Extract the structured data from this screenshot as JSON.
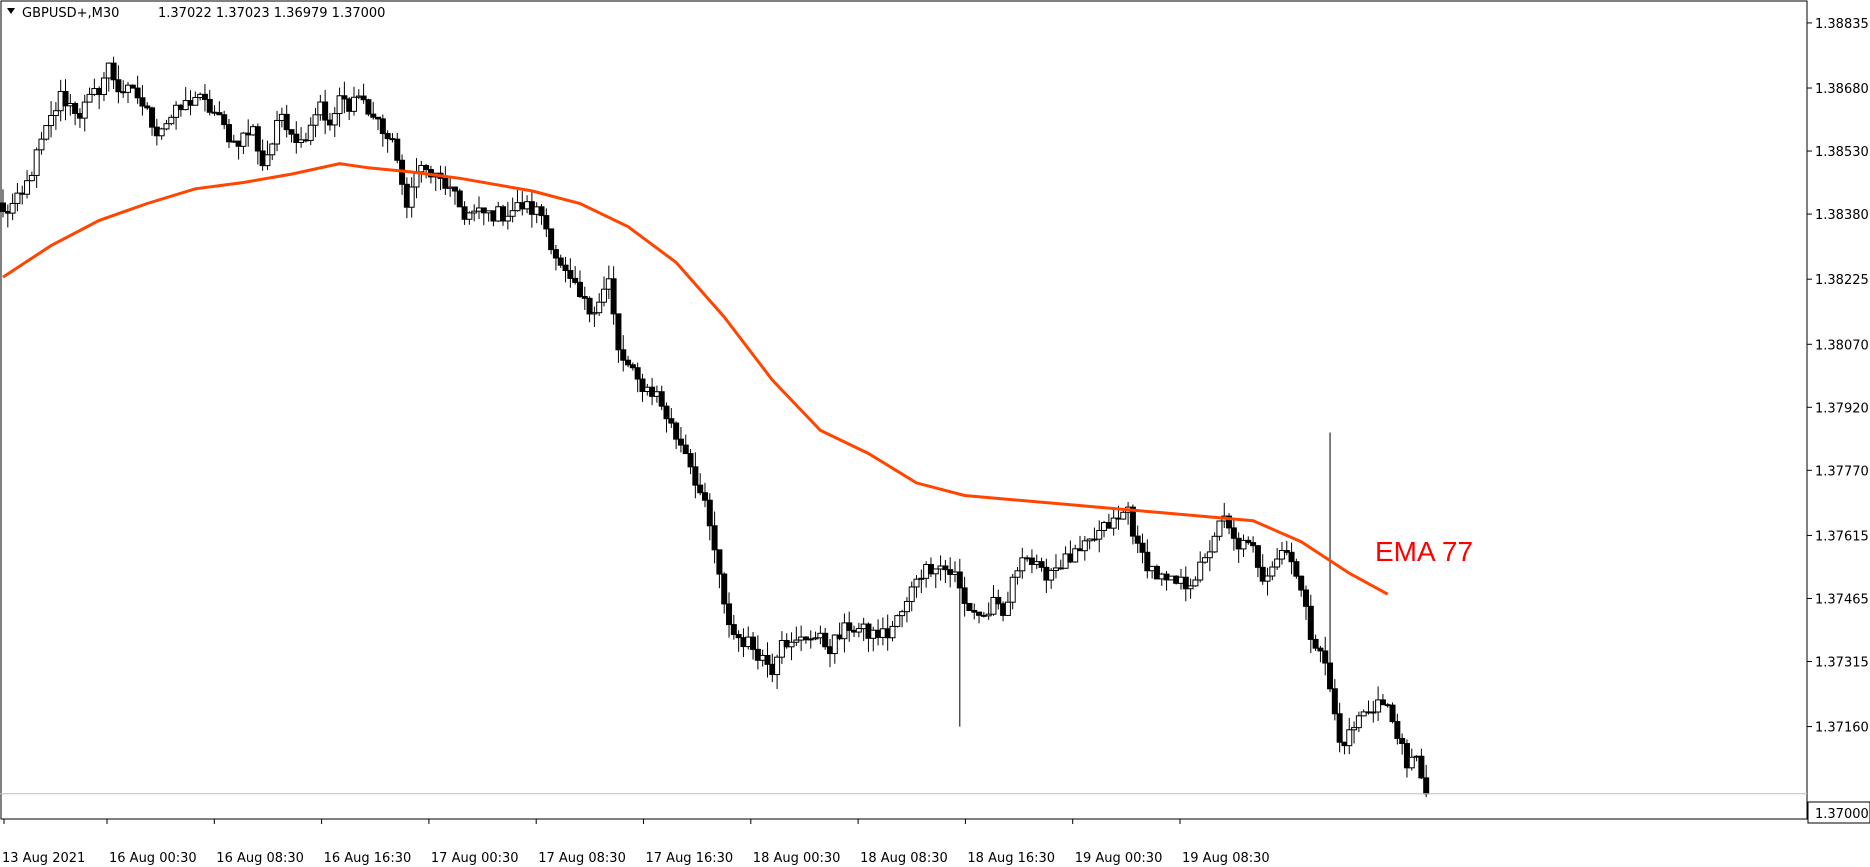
{
  "header": {
    "symbol": "GBPUSD+,M30",
    "ohlc": "1.37022 1.37023 1.36979 1.37000"
  },
  "colors": {
    "background": "#ffffff",
    "frame": "#000000",
    "candle": "#000000",
    "ema": "#ff4500",
    "ema_label": "#ff0000",
    "price_line": "#c0c0c0"
  },
  "chart_data": {
    "type": "candlestick",
    "ylim": [
      1.3694,
      1.3888
    ],
    "y_ticks": [
      "1.38835",
      "1.38680",
      "1.38530",
      "1.38380",
      "1.38225",
      "1.38070",
      "1.37920",
      "1.37770",
      "1.37615",
      "1.37465",
      "1.37315",
      "1.37160"
    ],
    "x_ticks": [
      "13 Aug 2021",
      "16 Aug 00:30",
      "16 Aug 08:30",
      "16 Aug 16:30",
      "17 Aug 00:30",
      "17 Aug 08:30",
      "17 Aug 16:30",
      "18 Aug 00:30",
      "18 Aug 08:30",
      "18 Aug 16:30",
      "19 Aug 00:30",
      "19 Aug 08:30"
    ],
    "last_price": "1.37000",
    "grid": false,
    "annotation": "EMA 77",
    "close_path": [
      [
        0,
        1.3838
      ],
      [
        4,
        1.3842
      ],
      [
        8,
        1.3855
      ],
      [
        12,
        1.3866
      ],
      [
        16,
        1.3862
      ],
      [
        20,
        1.3868
      ],
      [
        22,
        1.3873
      ],
      [
        24,
        1.3868
      ],
      [
        28,
        1.3866
      ],
      [
        30,
        1.3862
      ],
      [
        32,
        1.3858
      ],
      [
        36,
        1.3862
      ],
      [
        40,
        1.3866
      ],
      [
        44,
        1.3862
      ],
      [
        48,
        1.3855
      ],
      [
        52,
        1.3858
      ],
      [
        54,
        1.385
      ],
      [
        56,
        1.3855
      ],
      [
        58,
        1.3862
      ],
      [
        60,
        1.3858
      ],
      [
        62,
        1.3855
      ],
      [
        64,
        1.386
      ],
      [
        66,
        1.3865
      ],
      [
        68,
        1.3858
      ],
      [
        70,
        1.3866
      ],
      [
        72,
        1.3862
      ],
      [
        74,
        1.3868
      ],
      [
        76,
        1.3862
      ],
      [
        78,
        1.386
      ],
      [
        80,
        1.3856
      ],
      [
        82,
        1.3852
      ],
      [
        84,
        1.3838
      ],
      [
        86,
        1.385
      ],
      [
        88,
        1.3848
      ],
      [
        92,
        1.3845
      ],
      [
        96,
        1.3838
      ],
      [
        100,
        1.3838
      ],
      [
        104,
        1.3838
      ],
      [
        108,
        1.384
      ],
      [
        112,
        1.3838
      ],
      [
        116,
        1.3825
      ],
      [
        120,
        1.3818
      ],
      [
        122,
        1.3815
      ],
      [
        124,
        1.3818
      ],
      [
        126,
        1.3822
      ],
      [
        128,
        1.3805
      ],
      [
        132,
        1.3798
      ],
      [
        136,
        1.3795
      ],
      [
        140,
        1.3785
      ],
      [
        142,
        1.3782
      ],
      [
        146,
        1.3768
      ],
      [
        148,
        1.3758
      ],
      [
        150,
        1.3744
      ],
      [
        152,
        1.3738
      ],
      [
        156,
        1.3735
      ],
      [
        160,
        1.373
      ],
      [
        162,
        1.3738
      ],
      [
        164,
        1.3735
      ],
      [
        168,
        1.3738
      ],
      [
        172,
        1.3735
      ],
      [
        176,
        1.374
      ],
      [
        180,
        1.3738
      ],
      [
        184,
        1.3738
      ],
      [
        188,
        1.3745
      ],
      [
        190,
        1.3752
      ],
      [
        194,
        1.3755
      ],
      [
        198,
        1.3752
      ],
      [
        200,
        1.3745
      ],
      [
        204,
        1.3742
      ],
      [
        206,
        1.3745
      ],
      [
        208,
        1.3742
      ],
      [
        210,
        1.375
      ],
      [
        212,
        1.3758
      ],
      [
        216,
        1.3752
      ],
      [
        220,
        1.3755
      ],
      [
        224,
        1.3757
      ],
      [
        228,
        1.3762
      ],
      [
        230,
        1.3764
      ],
      [
        232,
        1.3765
      ],
      [
        234,
        1.3768
      ],
      [
        236,
        1.3758
      ],
      [
        240,
        1.3752
      ],
      [
        242,
        1.375
      ],
      [
        246,
        1.375
      ],
      [
        248,
        1.3752
      ],
      [
        250,
        1.3755
      ],
      [
        252,
        1.3762
      ],
      [
        254,
        1.3765
      ],
      [
        256,
        1.376
      ],
      [
        260,
        1.3758
      ],
      [
        262,
        1.3752
      ],
      [
        264,
        1.3755
      ],
      [
        266,
        1.3758
      ],
      [
        268,
        1.3757
      ],
      [
        270,
        1.3748
      ],
      [
        272,
        1.3738
      ],
      [
        274,
        1.3735
      ],
      [
        276,
        1.3725
      ],
      [
        278,
        1.3712
      ],
      [
        280,
        1.3714
      ],
      [
        282,
        1.3718
      ],
      [
        284,
        1.372
      ],
      [
        286,
        1.3722
      ],
      [
        288,
        1.372
      ],
      [
        290,
        1.3715
      ],
      [
        292,
        1.3705
      ],
      [
        294,
        1.371
      ],
      [
        296,
        1.37
      ]
    ],
    "series": [
      {
        "name": "EMA 77",
        "path": [
          [
            0,
            1.3823
          ],
          [
            10,
            1.38305
          ],
          [
            20,
            1.38365
          ],
          [
            30,
            1.38405
          ],
          [
            40,
            1.3844
          ],
          [
            50,
            1.38455
          ],
          [
            60,
            1.38475
          ],
          [
            70,
            1.385
          ],
          [
            76,
            1.3849
          ],
          [
            85,
            1.3848
          ],
          [
            95,
            1.38465
          ],
          [
            110,
            1.38435
          ],
          [
            120,
            1.38405
          ],
          [
            130,
            1.3835
          ],
          [
            140,
            1.38265
          ],
          [
            150,
            1.38135
          ],
          [
            160,
            1.37985
          ],
          [
            170,
            1.37865
          ],
          [
            180,
            1.3781
          ],
          [
            190,
            1.3774
          ],
          [
            200,
            1.3771
          ],
          [
            210,
            1.377
          ],
          [
            220,
            1.3769
          ],
          [
            230,
            1.3768
          ],
          [
            240,
            1.3767
          ],
          [
            250,
            1.3766
          ],
          [
            260,
            1.3765
          ],
          [
            270,
            1.376
          ],
          [
            280,
            1.37525
          ],
          [
            288,
            1.37475
          ]
        ]
      }
    ]
  }
}
